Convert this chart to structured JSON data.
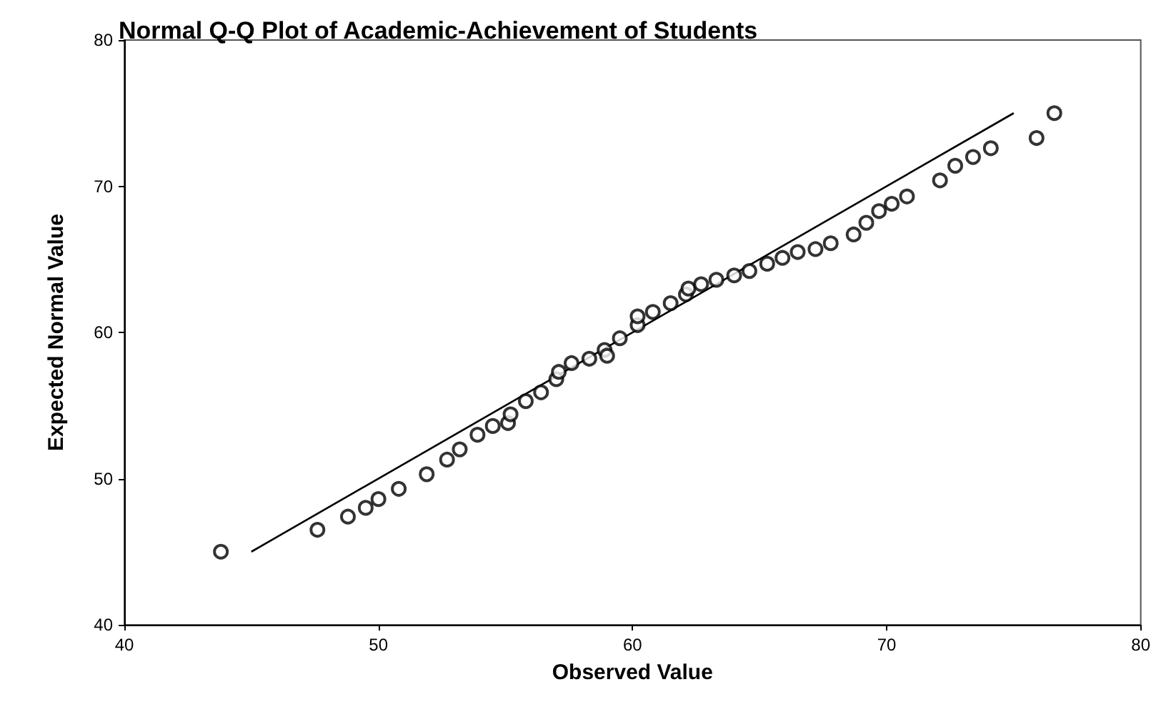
{
  "chart_data": {
    "type": "scatter",
    "title": "Normal Q-Q Plot of Academic-Achievement of Students",
    "xlabel": "Observed Value",
    "ylabel": "Expected Normal Value",
    "xlim": [
      40,
      80
    ],
    "ylim": [
      40,
      80
    ],
    "xticks": [
      40,
      50,
      60,
      70,
      80
    ],
    "yticks": [
      40,
      50,
      60,
      70,
      80
    ],
    "grid": false,
    "marker": "circle",
    "series": [
      {
        "color": "#000000",
        "x": [
          43.8,
          47.6,
          48.8,
          49.5,
          50.0,
          50.8,
          51.9,
          52.7,
          53.2,
          53.9,
          54.5,
          55.1,
          55.2,
          55.8,
          56.4,
          57.0,
          57.1,
          57.6,
          58.3,
          58.9,
          59.0,
          59.5,
          60.2,
          60.2,
          60.8,
          61.5,
          62.1,
          62.2,
          62.7,
          63.3,
          64.0,
          64.6,
          65.3,
          65.9,
          66.5,
          67.2,
          67.8,
          68.7,
          69.2,
          69.7,
          70.2,
          70.8,
          72.1,
          72.7,
          73.4,
          74.1,
          75.9,
          76.6
        ],
        "values": [
          45.0,
          46.5,
          47.4,
          48.0,
          48.6,
          49.3,
          50.3,
          51.3,
          52.0,
          53.0,
          53.6,
          53.8,
          54.4,
          55.3,
          55.9,
          56.8,
          57.3,
          57.9,
          58.2,
          58.8,
          58.4,
          59.6,
          60.5,
          61.1,
          61.4,
          62.0,
          62.6,
          63.0,
          63.3,
          63.6,
          63.9,
          64.2,
          64.7,
          65.1,
          65.5,
          65.7,
          66.1,
          66.7,
          67.5,
          68.3,
          68.8,
          69.3,
          70.4,
          71.4,
          72.0,
          72.6,
          73.3,
          75.0
        ]
      },
      {
        "type": "line",
        "color": "#000000",
        "x": [
          45,
          75
        ],
        "values": [
          45,
          75
        ],
        "marker": "none",
        "line_style": "solid"
      }
    ]
  }
}
